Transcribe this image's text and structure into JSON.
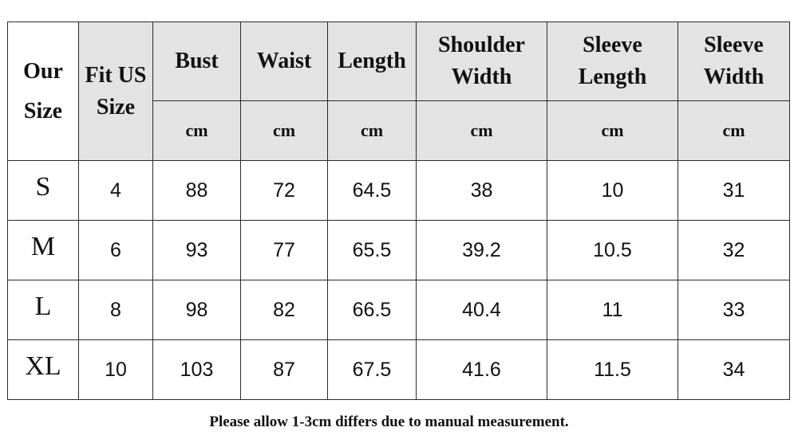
{
  "table": {
    "headers": {
      "our_size": [
        "Our",
        "Size"
      ],
      "fit_us_size": [
        "Fit US",
        "Size"
      ],
      "bust": [
        "Bust"
      ],
      "waist": [
        "Waist"
      ],
      "length": [
        "Length"
      ],
      "shoulder_width": [
        "Shoulder",
        "Width"
      ],
      "sleeve_length": [
        "Sleeve",
        "Length"
      ],
      "sleeve_width": [
        "Sleeve",
        "Width"
      ]
    },
    "units": [
      "cm",
      "cm",
      "cm",
      "cm",
      "cm",
      "cm"
    ],
    "rows": [
      [
        "S",
        "4",
        "88",
        "72",
        "64.5",
        "38",
        "10",
        "31"
      ],
      [
        "M",
        "6",
        "93",
        "77",
        "65.5",
        "39.2",
        "10.5",
        "32"
      ],
      [
        "L",
        "8",
        "98",
        "82",
        "66.5",
        "40.4",
        "11",
        "33"
      ],
      [
        "XL",
        "10",
        "103",
        "87",
        "67.5",
        "41.6",
        "11.5",
        "34"
      ]
    ]
  },
  "note": "Please allow 1-3cm differs due to manual measurement."
}
